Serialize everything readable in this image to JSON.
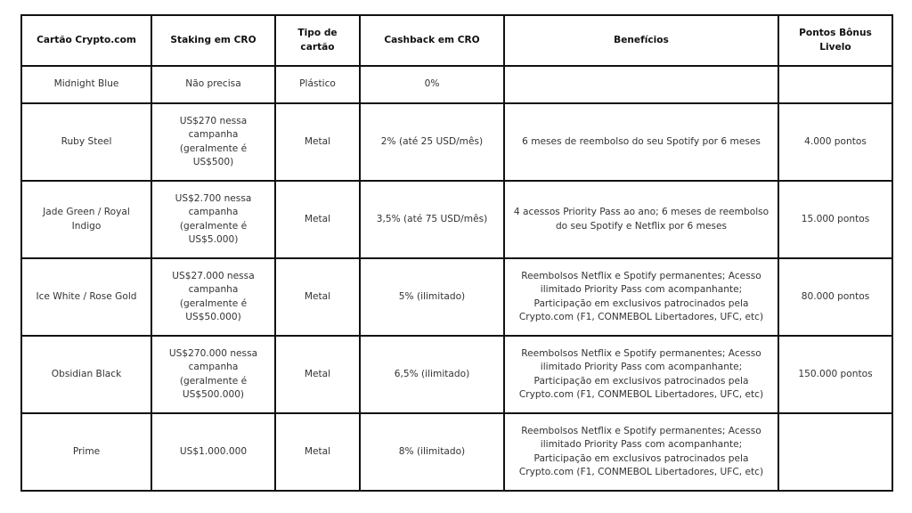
{
  "headers": [
    "Cartão Crypto.com",
    "Staking em CRO",
    "Tipo de\ncartão",
    "Cashback em CRO",
    "Benefícios",
    "Pontos Bônus\nLivelo"
  ],
  "rows": [
    [
      "Midnight Blue",
      "Não precisa",
      "Plástico",
      "0%",
      "",
      ""
    ],
    [
      "Ruby Steel",
      "US$270 nessa\ncampanha\n(geralmente é\nUS$500)",
      "Metal",
      "2% (até 25 USD/mês)",
      "6 meses de reembolso do seu Spotify por 6 meses",
      "4.000 pontos"
    ],
    [
      "Jade Green / Royal\nIndigo",
      "US$2.700 nessa\ncampanha\n(geralmente é\nUS$5.000)",
      "Metal",
      "3,5% (até 75 USD/mês)",
      "4 acessos Priority Pass ao ano; 6 meses de reembolso\ndo seu Spotify e Netflix por 6 meses",
      "15.000 pontos"
    ],
    [
      "Ice White / Rose Gold",
      "US$27.000 nessa\ncampanha\n(geralmente é\nUS$50.000)",
      "Metal",
      "5% (ilimitado)",
      "Reembolsos Netflix e Spotify permanentes; Acesso\nilimitado Priority Pass com acompanhante;\nParticipação em exclusivos patrocinados pela\nCrypto.com (F1, CONMEBOL Libertadores, UFC, etc)",
      "80.000 pontos"
    ],
    [
      "Obsidian Black",
      "US$270.000 nessa\ncampanha\n(geralmente é\nUS$500.000)",
      "Metal",
      "6,5% (ilimitado)",
      "Reembolsos Netflix e Spotify permanentes; Acesso\nilimitado Priority Pass com acompanhante;\nParticipação em exclusivos patrocinados pela\nCrypto.com (F1, CONMEBOL Libertadores, UFC, etc)",
      "150.000 pontos"
    ],
    [
      "Prime",
      "US$1.000.000",
      "Metal",
      "8% (ilimitado)",
      "Reembolsos Netflix e Spotify permanentes; Acesso\nilimitado Priority Pass com acompanhante;\nParticipação em exclusivos patrocinados pela\nCrypto.com (F1, CONMEBOL Libertadores, UFC, etc)",
      ""
    ]
  ]
}
